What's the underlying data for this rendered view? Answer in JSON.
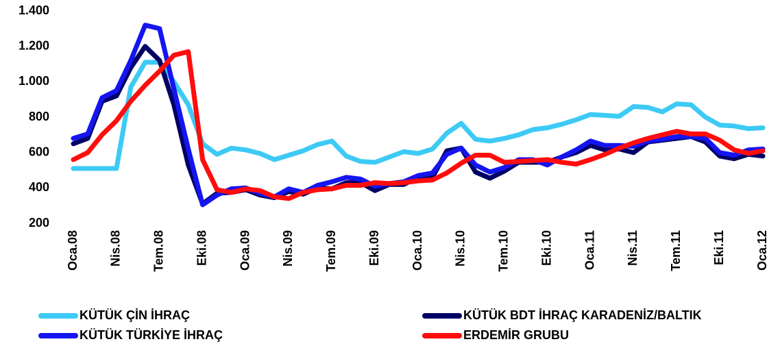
{
  "chart_data": {
    "type": "line",
    "categories": [
      "Oca.08",
      null,
      null,
      "Nis.08",
      null,
      null,
      "Tem.08",
      null,
      null,
      "Eki.08",
      null,
      null,
      "Oca.09",
      null,
      null,
      "Nis.09",
      null,
      null,
      "Tem.09",
      null,
      null,
      "Eki.09",
      null,
      null,
      "Oca.10",
      null,
      null,
      "Nis.10",
      null,
      null,
      "Tem.10",
      null,
      null,
      "Eki.10",
      null,
      null,
      "Oca.11",
      null,
      null,
      "Nis.11",
      null,
      null,
      "Tem.11",
      null,
      null,
      "Eki.11",
      null,
      null,
      "Oca.12"
    ],
    "series": [
      {
        "name": "KÜTÜK ÇİN İHRAÇ",
        "color": "#3dcaf5",
        "values": [
          510,
          510,
          510,
          510,
          970,
          1110,
          1110,
          1000,
          870,
          650,
          590,
          625,
          615,
          595,
          560,
          585,
          610,
          645,
          665,
          580,
          550,
          545,
          575,
          605,
          595,
          620,
          710,
          765,
          675,
          665,
          680,
          700,
          730,
          740,
          760,
          785,
          815,
          810,
          805,
          860,
          855,
          830,
          875,
          870,
          800,
          755,
          750,
          735,
          740
        ]
      },
      {
        "name": "KÜTÜK BDT İHRAÇ KARADENİZ/BALTIK",
        "color": "#000066",
        "values": [
          650,
          680,
          890,
          920,
          1080,
          1200,
          1120,
          870,
          530,
          310,
          370,
          375,
          390,
          360,
          345,
          380,
          365,
          400,
          395,
          430,
          430,
          385,
          420,
          420,
          460,
          460,
          610,
          625,
          490,
          455,
          495,
          545,
          545,
          545,
          575,
          600,
          640,
          615,
          620,
          600,
          660,
          670,
          680,
          690,
          660,
          580,
          565,
          590,
          580
        ]
      },
      {
        "name": "KÜTÜK TÜRKİYE İHRAÇ",
        "color": "#1515f0",
        "values": [
          680,
          705,
          910,
          950,
          1120,
          1320,
          1300,
          960,
          620,
          305,
          360,
          395,
          400,
          370,
          350,
          395,
          375,
          415,
          435,
          460,
          450,
          410,
          425,
          435,
          470,
          485,
          590,
          625,
          530,
          490,
          515,
          560,
          560,
          530,
          575,
          615,
          665,
          640,
          640,
          635,
          665,
          675,
          690,
          690,
          680,
          600,
          585,
          615,
          620
        ]
      },
      {
        "name": "ERDEMİR GRUBU",
        "color": "#ff0d0d",
        "values": [
          560,
          600,
          700,
          780,
          890,
          980,
          1060,
          1150,
          1170,
          560,
          390,
          375,
          395,
          385,
          350,
          340,
          375,
          390,
          395,
          415,
          415,
          430,
          425,
          430,
          440,
          445,
          485,
          540,
          585,
          585,
          545,
          550,
          555,
          560,
          545,
          535,
          560,
          590,
          625,
          655,
          680,
          700,
          720,
          705,
          705,
          670,
          615,
          595,
          610
        ]
      }
    ],
    "ylim": [
      200,
      1400
    ],
    "yticks": [
      200,
      400,
      600,
      800,
      {
        "value": 1000,
        "label": "1.000"
      },
      {
        "value": 1200,
        "label": "1.200"
      },
      {
        "value": 1400,
        "label": "1.400"
      }
    ],
    "legend": "bottom"
  }
}
